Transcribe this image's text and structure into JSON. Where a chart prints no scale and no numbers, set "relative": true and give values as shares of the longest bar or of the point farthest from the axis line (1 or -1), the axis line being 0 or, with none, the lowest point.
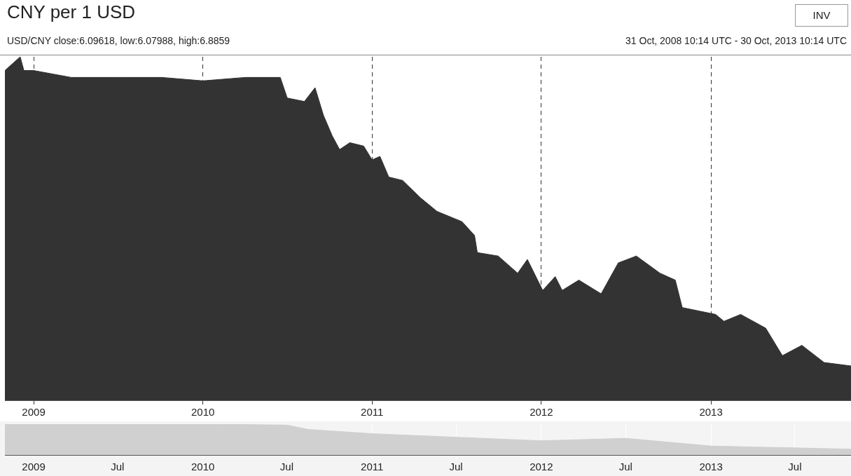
{
  "chart_data": [
    {
      "type": "area",
      "title": "CNY per 1 USD",
      "subtitle": "USD/CNY  close:6.09618, low:6.07988, high:6.8859",
      "annotations": [
        "31 Oct, 2008 10:14 UTC - 30 Oct, 2013 10:14 UTC",
        "INV"
      ],
      "relative": true,
      "x": [
        "2008-10-31",
        "2008-12-03",
        "2008-12-11",
        "2009-01-01",
        "2009-03-23",
        "2009-07-06",
        "2009-10-04",
        "2010-01-01",
        "2010-04-03",
        "2010-06-17",
        "2010-07-02",
        "2010-08-08",
        "2010-08-31",
        "2010-09-18",
        "2010-10-07",
        "2010-10-23",
        "2010-11-14",
        "2010-12-14",
        "2011-01-01",
        "2011-01-18",
        "2011-02-06",
        "2011-03-08",
        "2011-04-15",
        "2011-05-21",
        "2011-07-14",
        "2011-08-10",
        "2011-08-16",
        "2011-09-30",
        "2011-11-11",
        "2011-12-02",
        "2012-01-04",
        "2012-01-31",
        "2012-02-15",
        "2012-03-22",
        "2012-05-09",
        "2012-06-15",
        "2012-07-24",
        "2012-09-13",
        "2012-10-16",
        "2012-10-31",
        "2013-01-11",
        "2013-01-29",
        "2013-03-06",
        "2013-04-29",
        "2013-06-04",
        "2013-07-16",
        "2013-09-02",
        "2013-10-30"
      ],
      "series": [
        {
          "color": "#333333",
          "values": [
            0.96,
            1.0,
            0.96,
            0.96,
            0.94,
            0.94,
            0.94,
            0.93,
            0.94,
            0.94,
            0.88,
            0.87,
            0.91,
            0.83,
            0.77,
            0.73,
            0.75,
            0.74,
            0.7,
            0.71,
            0.65,
            0.64,
            0.59,
            0.55,
            0.52,
            0.48,
            0.43,
            0.42,
            0.37,
            0.41,
            0.32,
            0.36,
            0.32,
            0.35,
            0.31,
            0.4,
            0.42,
            0.37,
            0.35,
            0.27,
            0.25,
            0.23,
            0.25,
            0.21,
            0.13,
            0.16,
            0.11,
            0.1
          ]
        }
      ],
      "xlim": [
        "2008-10-31",
        "2013-10-30"
      ],
      "xticks": [
        {
          "value": "2009-01-01",
          "label": "2009"
        },
        {
          "value": "2010-01-01",
          "label": "2010"
        },
        {
          "value": "2011-01-01",
          "label": "2011"
        },
        {
          "value": "2012-01-01",
          "label": "2012"
        },
        {
          "value": "2013-01-01",
          "label": "2013"
        }
      ],
      "grid": "x",
      "line_style": "dashed",
      "legend": false,
      "tick_labels": "x"
    },
    {
      "type": "area",
      "relative": true,
      "x": [
        "2008-10-31",
        "2009-06-01",
        "2010-01-01",
        "2010-07-01",
        "2010-08-15",
        "2011-01-01",
        "2012-01-01",
        "2012-07-01",
        "2013-01-01",
        "2013-10-30"
      ],
      "series": [
        {
          "color": "#d0d0d0",
          "values": [
            1.0,
            1.0,
            1.0,
            0.97,
            0.83,
            0.69,
            0.46,
            0.54,
            0.29,
            0.19
          ]
        }
      ],
      "xlim": [
        "2008-10-31",
        "2013-10-30"
      ],
      "xticks": [
        {
          "value": "2009-01-01",
          "label": "2009"
        },
        {
          "value": "2009-07-01",
          "label": "Jul"
        },
        {
          "value": "2010-01-01",
          "label": "2010"
        },
        {
          "value": "2010-07-01",
          "label": "Jul"
        },
        {
          "value": "2011-01-01",
          "label": "2011"
        },
        {
          "value": "2011-07-01",
          "label": "Jul"
        },
        {
          "value": "2012-01-01",
          "label": "2012"
        },
        {
          "value": "2012-07-01",
          "label": "Jul"
        },
        {
          "value": "2013-01-01",
          "label": "2013"
        },
        {
          "value": "2013-07-01",
          "label": "Jul"
        }
      ],
      "grid": "x",
      "legend": false,
      "tick_labels": "x"
    }
  ]
}
